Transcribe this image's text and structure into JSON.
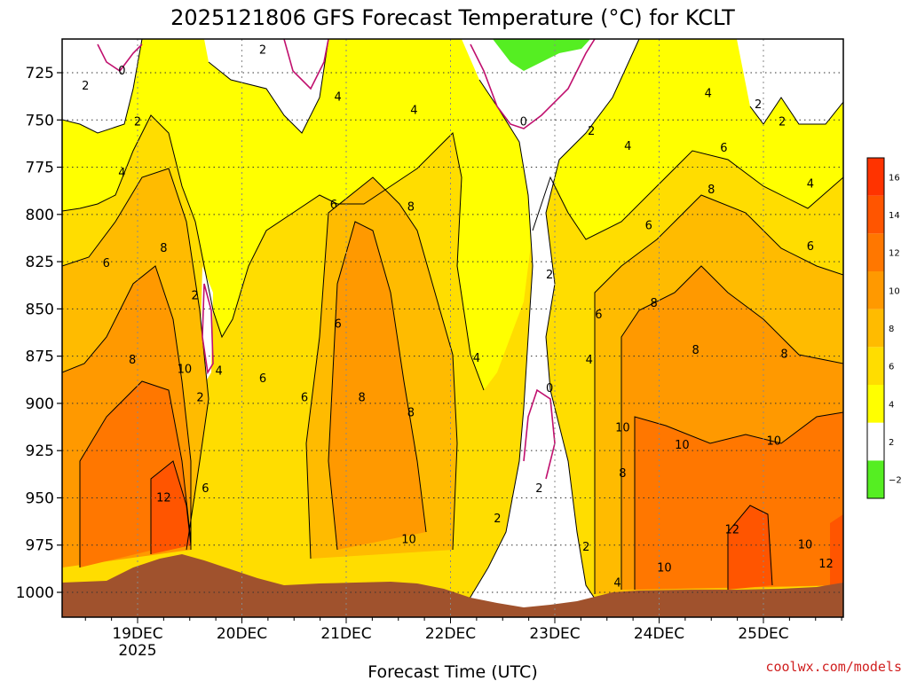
{
  "chart_data": {
    "type": "heatmap",
    "title": "2025121806 GFS Forecast Temperature (°C) for KCLT",
    "xlabel": "Forecast Time (UTC)",
    "ylabel": "",
    "credit": "coolwx.com/models",
    "x_ticks": [
      {
        "day": "19DEC",
        "year": "2025"
      },
      {
        "day": "20DEC",
        "year": ""
      },
      {
        "day": "21DEC",
        "year": ""
      },
      {
        "day": "22DEC",
        "year": ""
      },
      {
        "day": "23DEC",
        "year": ""
      },
      {
        "day": "24DEC",
        "year": ""
      },
      {
        "day": "25DEC",
        "year": ""
      }
    ],
    "y_ticks": [
      725,
      750,
      775,
      800,
      825,
      850,
      875,
      900,
      925,
      950,
      975,
      1000
    ],
    "yaxis_inverted": true,
    "colorbar": {
      "levels": [
        -2,
        2,
        4,
        6,
        8,
        10,
        12,
        14,
        16
      ],
      "tick_labels": [
        "−2",
        "2",
        "4",
        "6",
        "8",
        "10",
        "12",
        "14",
        "16"
      ],
      "colors": [
        "#55ee22",
        "#ffffff",
        "#ffff00",
        "#ffdd00",
        "#ffbb00",
        "#ff9900",
        "#ff7700",
        "#ff5500",
        "#ff3300"
      ]
    },
    "surface_color": "#a0522d",
    "contour_labels": [
      {
        "text": "2",
        "x": 18.5,
        "p": 732
      },
      {
        "text": "0",
        "x": 18.85,
        "p": 724
      },
      {
        "text": "2",
        "x": 19.0,
        "p": 751
      },
      {
        "text": "4",
        "x": 18.85,
        "p": 778
      },
      {
        "text": "6",
        "x": 18.7,
        "p": 826
      },
      {
        "text": "8",
        "x": 19.25,
        "p": 818
      },
      {
        "text": "2",
        "x": 19.55,
        "p": 843
      },
      {
        "text": "8",
        "x": 18.95,
        "p": 877
      },
      {
        "text": "10",
        "x": 19.45,
        "p": 882
      },
      {
        "text": "2",
        "x": 19.6,
        "p": 897
      },
      {
        "text": "4",
        "x": 19.78,
        "p": 883
      },
      {
        "text": "6",
        "x": 20.2,
        "p": 887
      },
      {
        "text": "6",
        "x": 19.65,
        "p": 945
      },
      {
        "text": "12",
        "x": 19.25,
        "p": 950
      },
      {
        "text": "2",
        "x": 20.2,
        "p": 713
      },
      {
        "text": "4",
        "x": 20.92,
        "p": 738
      },
      {
        "text": "4",
        "x": 21.65,
        "p": 745
      },
      {
        "text": "6",
        "x": 20.88,
        "p": 795
      },
      {
        "text": "8",
        "x": 21.62,
        "p": 796
      },
      {
        "text": "6",
        "x": 20.92,
        "p": 858
      },
      {
        "text": "6",
        "x": 20.6,
        "p": 897
      },
      {
        "text": "8",
        "x": 21.15,
        "p": 897
      },
      {
        "text": "8",
        "x": 21.62,
        "p": 905
      },
      {
        "text": "10",
        "x": 21.6,
        "p": 972
      },
      {
        "text": "4",
        "x": 22.25,
        "p": 876
      },
      {
        "text": "0",
        "x": 22.7,
        "p": 751
      },
      {
        "text": "2",
        "x": 23.35,
        "p": 756
      },
      {
        "text": "2",
        "x": 22.95,
        "p": 832
      },
      {
        "text": "0",
        "x": 22.95,
        "p": 892
      },
      {
        "text": "2",
        "x": 22.85,
        "p": 945
      },
      {
        "text": "2",
        "x": 22.45,
        "p": 961
      },
      {
        "text": "2",
        "x": 23.3,
        "p": 976
      },
      {
        "text": "4",
        "x": 23.33,
        "p": 877
      },
      {
        "text": "6",
        "x": 23.42,
        "p": 853
      },
      {
        "text": "4",
        "x": 23.7,
        "p": 764
      },
      {
        "text": "6",
        "x": 23.9,
        "p": 806
      },
      {
        "text": "8",
        "x": 23.95,
        "p": 847
      },
      {
        "text": "4",
        "x": 24.47,
        "p": 736
      },
      {
        "text": "6",
        "x": 24.62,
        "p": 765
      },
      {
        "text": "8",
        "x": 24.5,
        "p": 787
      },
      {
        "text": "2",
        "x": 24.95,
        "p": 742
      },
      {
        "text": "2",
        "x": 25.18,
        "p": 751
      },
      {
        "text": "4",
        "x": 25.45,
        "p": 784
      },
      {
        "text": "6",
        "x": 25.45,
        "p": 817
      },
      {
        "text": "8",
        "x": 24.35,
        "p": 872
      },
      {
        "text": "8",
        "x": 25.2,
        "p": 874
      },
      {
        "text": "10",
        "x": 23.65,
        "p": 913
      },
      {
        "text": "8",
        "x": 23.65,
        "p": 937
      },
      {
        "text": "10",
        "x": 24.22,
        "p": 922
      },
      {
        "text": "10",
        "x": 25.1,
        "p": 920
      },
      {
        "text": "12",
        "x": 24.7,
        "p": 967
      },
      {
        "text": "10",
        "x": 24.05,
        "p": 987
      },
      {
        "text": "10",
        "x": 25.4,
        "p": 975
      },
      {
        "text": "12",
        "x": 25.6,
        "p": 985
      },
      {
        "text": "4",
        "x": 23.6,
        "p": 995
      }
    ]
  }
}
